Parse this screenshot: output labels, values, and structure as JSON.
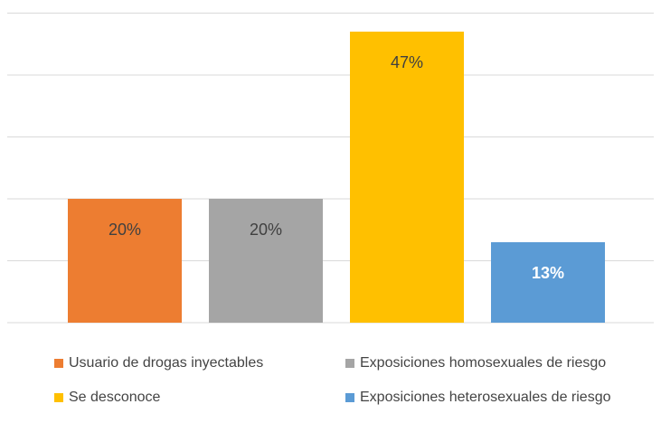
{
  "chart_data": {
    "type": "bar",
    "title": "",
    "xlabel": "",
    "ylabel": "",
    "ylim": [
      0,
      50
    ],
    "grid": true,
    "legend_position": "bottom",
    "categories": [
      "Usuario de drogas inyectables",
      "Exposiciones homosexuales de riesgo",
      "Se desconoce",
      "Exposiciones heterosexuales de riesgo"
    ],
    "values": [
      20,
      20,
      47,
      13
    ],
    "labels": [
      "20%",
      "20%",
      "47%",
      "13%"
    ],
    "colors": [
      "#ED7D31",
      "#A5A5A5",
      "#FFC000",
      "#5B9BD5"
    ]
  }
}
